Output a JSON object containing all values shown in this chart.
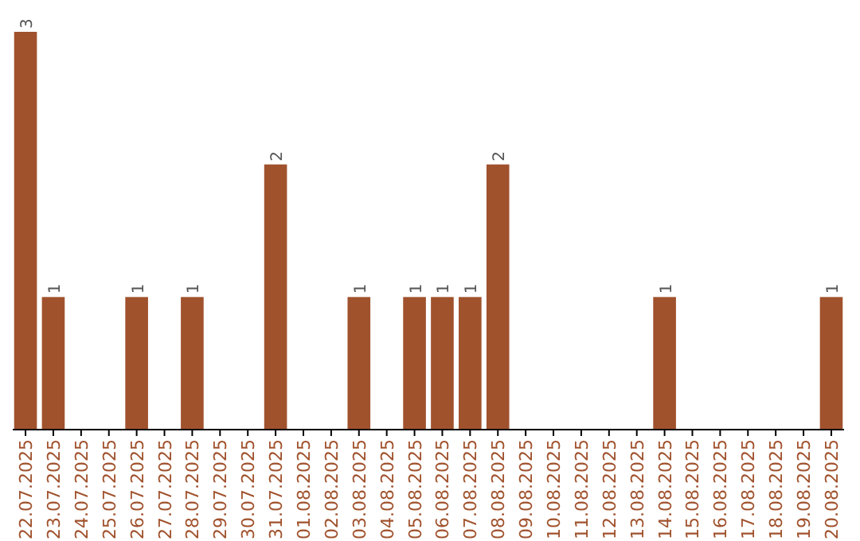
{
  "chart_data": {
    "type": "bar",
    "categories": [
      "22.07.2025",
      "23.07.2025",
      "24.07.2025",
      "25.07.2025",
      "26.07.2025",
      "27.07.2025",
      "28.07.2025",
      "29.07.2025",
      "30.07.2025",
      "31.07.2025",
      "01.08.2025",
      "02.08.2025",
      "03.08.2025",
      "04.08.2025",
      "05.08.2025",
      "06.08.2025",
      "07.08.2025",
      "08.08.2025",
      "09.08.2025",
      "10.08.2025",
      "11.08.2025",
      "12.08.2025",
      "13.08.2025",
      "14.08.2025",
      "15.08.2025",
      "16.08.2025",
      "17.08.2025",
      "18.08.2025",
      "19.08.2025",
      "20.08.2025"
    ],
    "values": [
      3,
      1,
      0,
      0,
      1,
      0,
      1,
      0,
      0,
      2,
      0,
      0,
      1,
      0,
      1,
      1,
      1,
      2,
      0,
      0,
      0,
      0,
      0,
      1,
      0,
      0,
      0,
      0,
      0,
      1
    ],
    "value_labels": [
      "3",
      "1",
      null,
      null,
      "1",
      null,
      "1",
      null,
      null,
      "2",
      null,
      null,
      "1",
      null,
      "1",
      "1",
      "1",
      "2",
      null,
      null,
      null,
      null,
      null,
      "1",
      null,
      null,
      null,
      null,
      null,
      "1"
    ],
    "color": "#a0522d",
    "tick_labels": "x"
  }
}
